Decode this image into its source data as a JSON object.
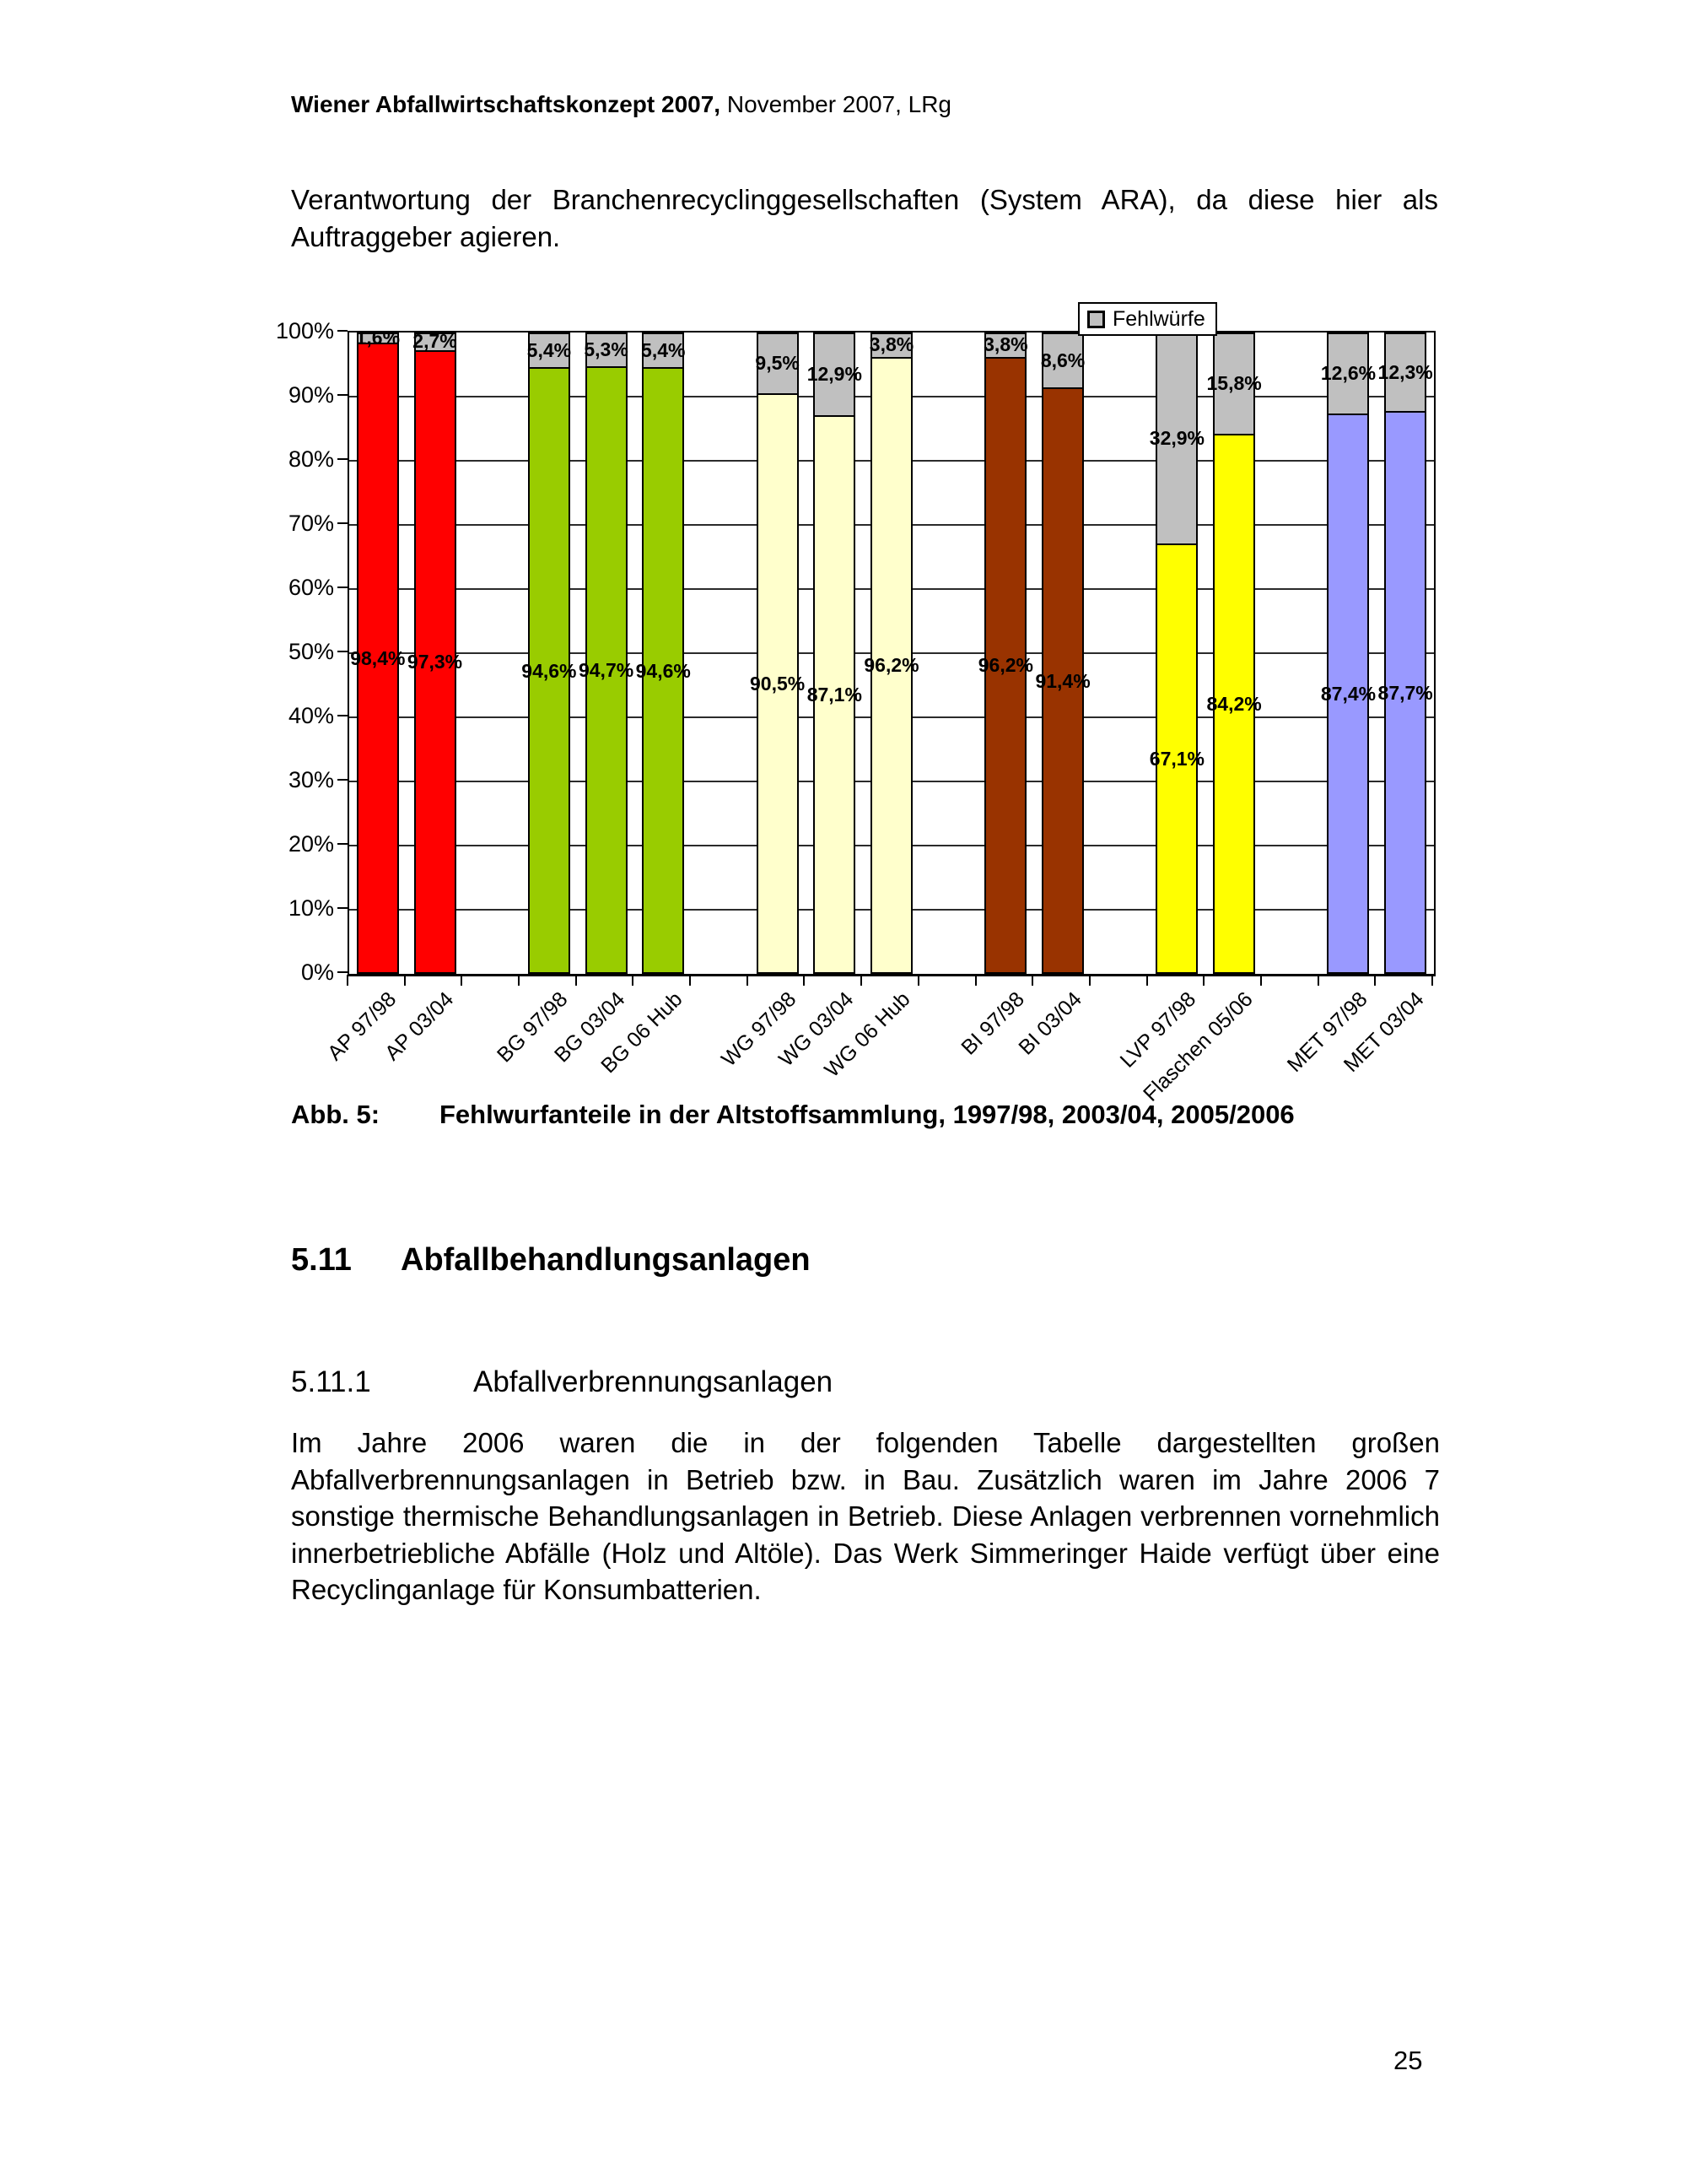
{
  "page": {
    "header_bold": "Wiener Abfallwirtschaftskonzept 2007,",
    "header_rest": " November 2007, LRg",
    "intro_paragraph": "Verantwortung der Branchenrecyclinggesellschaften (System ARA), da diese hier als Auftraggeber agieren.",
    "caption_label": "Abb. 5:",
    "caption_text": "Fehlwurfanteile in der Altstoffsammlung, 1997/98, 2003/04, 2005/2006",
    "section_number": "5.11",
    "section_title": "Abfallbehandlungsanlagen",
    "subsection_number": "5.11.1",
    "subsection_title": "Abfallverbrennungsanlagen",
    "body_paragraph": "Im Jahre 2006 waren die in der folgenden Tabelle dargestellten großen Abfallverbrennungsanlagen in Betrieb bzw. in Bau. Zusätzlich waren im Jahre 2006 7 sonstige thermische Behandlungsanlagen in Betrieb. Diese Anlagen verbrennen vornehmlich innerbetriebliche Abfälle (Holz und Altöle). Das Werk Simmeringer Haide verfügt über eine Recyclinganlage für Konsumbatterien.",
    "page_number": "25"
  },
  "chart_data": {
    "type": "bar",
    "subtype": "stacked-100-percent",
    "legend": {
      "label": "Fehlwürfe",
      "color": "#C0C0C0",
      "position": "top-right"
    },
    "fehlwurf_color": "#C0C0C0",
    "y_axis": {
      "min": 0,
      "max": 100,
      "step": 10,
      "unit": "%"
    },
    "grid": true,
    "slots_total": 19,
    "bars": [
      {
        "category": "AP 97/98",
        "slot": 0,
        "main": {
          "value": 98.4,
          "label": "98,4%",
          "color": "#FF0000"
        },
        "fehlwurf": {
          "value": 1.6,
          "label": "1,6%"
        }
      },
      {
        "category": "AP 03/04",
        "slot": 1,
        "main": {
          "value": 97.3,
          "label": "97,3%",
          "color": "#FF0000"
        },
        "fehlwurf": {
          "value": 2.7,
          "label": "2,7%"
        }
      },
      {
        "category": "BG 97/98",
        "slot": 3,
        "main": {
          "value": 94.6,
          "label": "94,6%",
          "color": "#99CC00"
        },
        "fehlwurf": {
          "value": 5.4,
          "label": "5,4%"
        }
      },
      {
        "category": "BG 03/04",
        "slot": 4,
        "main": {
          "value": 94.7,
          "label": "94,7%",
          "color": "#99CC00"
        },
        "fehlwurf": {
          "value": 5.3,
          "label": "5,3%"
        }
      },
      {
        "category": "BG 06 Hub",
        "slot": 5,
        "main": {
          "value": 94.6,
          "label": "94,6%",
          "color": "#99CC00"
        },
        "fehlwurf": {
          "value": 5.4,
          "label": "5,4%"
        }
      },
      {
        "category": "WG 97/98",
        "slot": 7,
        "main": {
          "value": 90.5,
          "label": "90,5%",
          "color": "#FFFFCC"
        },
        "fehlwurf": {
          "value": 9.5,
          "label": "9,5%"
        }
      },
      {
        "category": "WG 03/04",
        "slot": 8,
        "main": {
          "value": 87.1,
          "label": "87,1%",
          "color": "#FFFFCC"
        },
        "fehlwurf": {
          "value": 12.9,
          "label": "12,9%"
        }
      },
      {
        "category": "WG 06 Hub",
        "slot": 9,
        "main": {
          "value": 96.2,
          "label": "96,2%",
          "color": "#FFFFCC"
        },
        "fehlwurf": {
          "value": 3.8,
          "label": "3,8%"
        }
      },
      {
        "category": "BI 97/98",
        "slot": 11,
        "main": {
          "value": 96.2,
          "label": "96,2%",
          "color": "#993300"
        },
        "fehlwurf": {
          "value": 3.8,
          "label": "3,8%"
        }
      },
      {
        "category": "BI 03/04",
        "slot": 12,
        "main": {
          "value": 91.4,
          "label": "91,4%",
          "color": "#993300"
        },
        "fehlwurf": {
          "value": 8.6,
          "label": "8,6%"
        }
      },
      {
        "category": "LVP 97/98",
        "slot": 14,
        "main": {
          "value": 67.1,
          "label": "67,1%",
          "color": "#FFFF00"
        },
        "fehlwurf": {
          "value": 32.9,
          "label": "32,9%"
        }
      },
      {
        "category": "Flaschen 05/06",
        "slot": 15,
        "main": {
          "value": 84.2,
          "label": "84,2%",
          "color": "#FFFF00"
        },
        "fehlwurf": {
          "value": 15.8,
          "label": "15,8%"
        }
      },
      {
        "category": "MET 97/98",
        "slot": 17,
        "main": {
          "value": 87.4,
          "label": "87,4%",
          "color": "#9999FF"
        },
        "fehlwurf": {
          "value": 12.6,
          "label": "12,6%"
        }
      },
      {
        "category": "MET 03/04",
        "slot": 18,
        "main": {
          "value": 87.7,
          "label": "87,7%",
          "color": "#9999FF"
        },
        "fehlwurf": {
          "value": 12.3,
          "label": "12,3%"
        }
      }
    ]
  }
}
